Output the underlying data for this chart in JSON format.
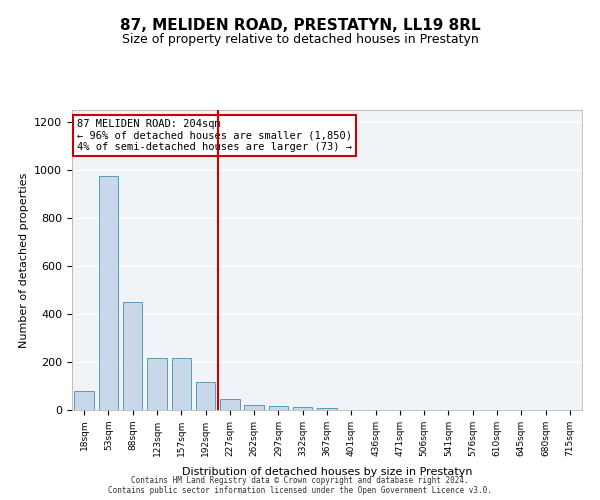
{
  "title": "87, MELIDEN ROAD, PRESTATYN, LL19 8RL",
  "subtitle": "Size of property relative to detached houses in Prestatyn",
  "xlabel": "Distribution of detached houses by size in Prestatyn",
  "ylabel": "Number of detached properties",
  "bar_color": "#c8d8e8",
  "bar_edge_color": "#5a9aba",
  "bin_labels": [
    "18sqm",
    "53sqm",
    "88sqm",
    "123sqm",
    "157sqm",
    "192sqm",
    "227sqm",
    "262sqm",
    "297sqm",
    "332sqm",
    "367sqm",
    "401sqm",
    "436sqm",
    "471sqm",
    "506sqm",
    "541sqm",
    "576sqm",
    "610sqm",
    "645sqm",
    "680sqm",
    "715sqm"
  ],
  "bar_heights": [
    80,
    975,
    450,
    215,
    215,
    115,
    45,
    22,
    18,
    14,
    8,
    0,
    0,
    0,
    0,
    0,
    0,
    0,
    0,
    0,
    0
  ],
  "ylim": [
    0,
    1250
  ],
  "yticks": [
    0,
    200,
    400,
    600,
    800,
    1000,
    1200
  ],
  "annotation_text": "87 MELIDEN ROAD: 204sqm\n← 96% of detached houses are smaller (1,850)\n4% of semi-detached houses are larger (73) →",
  "vline_x": 5.5,
  "vline_color": "#cc0000",
  "annotation_box_color": "#ffdddd",
  "annotation_box_edge": "#cc0000",
  "bg_color": "#f0f4f8",
  "footer": "Contains HM Land Registry data © Crown copyright and database right 2024.\nContains public sector information licensed under the Open Government Licence v3.0.",
  "grid_color": "#ffffff"
}
